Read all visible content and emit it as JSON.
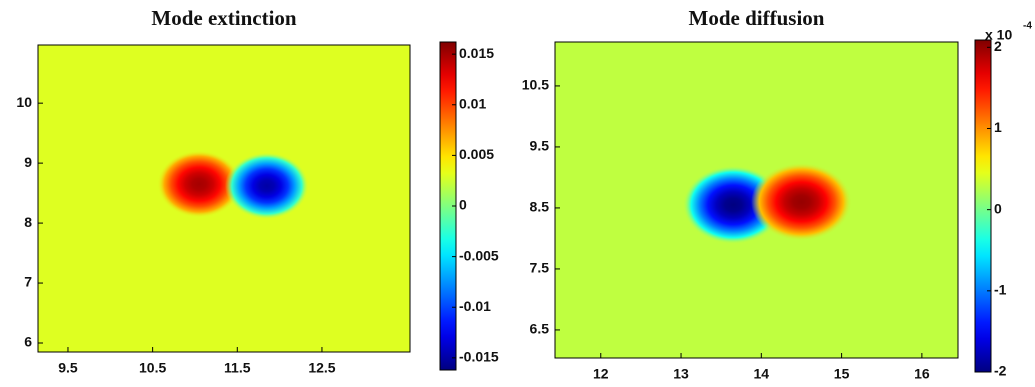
{
  "chart_data": [
    {
      "type": "heatmap",
      "title": "Mode extinction",
      "xlim": [
        9.146,
        13.54
      ],
      "ylim": [
        5.85,
        10.97
      ],
      "xticks": [
        9.5,
        10.5,
        11.5,
        12.5
      ],
      "yticks": [
        6,
        7,
        8,
        9,
        10
      ],
      "clim": [
        -0.0162,
        0.0162
      ],
      "cticks": [
        0.015,
        0.01,
        0.005,
        0,
        -0.005,
        -0.01,
        -0.015
      ],
      "background": 0.003,
      "blobs": [
        {
          "x": 11.05,
          "y": 8.65,
          "value": 0.015
        },
        {
          "x": 11.85,
          "y": 8.62,
          "value": -0.015
        }
      ]
    },
    {
      "type": "heatmap",
      "title": "Mode diffusion",
      "xlim": [
        11.43,
        16.45
      ],
      "ylim": [
        6.04,
        11.22
      ],
      "xticks": [
        12,
        13,
        14,
        15,
        16
      ],
      "yticks": [
        6.5,
        7.5,
        8.5,
        9.5,
        10.5
      ],
      "clim": [
        -2,
        2.09
      ],
      "cticks": [
        2,
        1,
        0,
        -1,
        -2
      ],
      "colorbar_multiplier": "x 10",
      "colorbar_exponent": "-4",
      "background": 0.3,
      "blobs": [
        {
          "x": 13.65,
          "y": 8.55,
          "value": -2
        },
        {
          "x": 14.5,
          "y": 8.6,
          "value": 2
        }
      ]
    }
  ]
}
